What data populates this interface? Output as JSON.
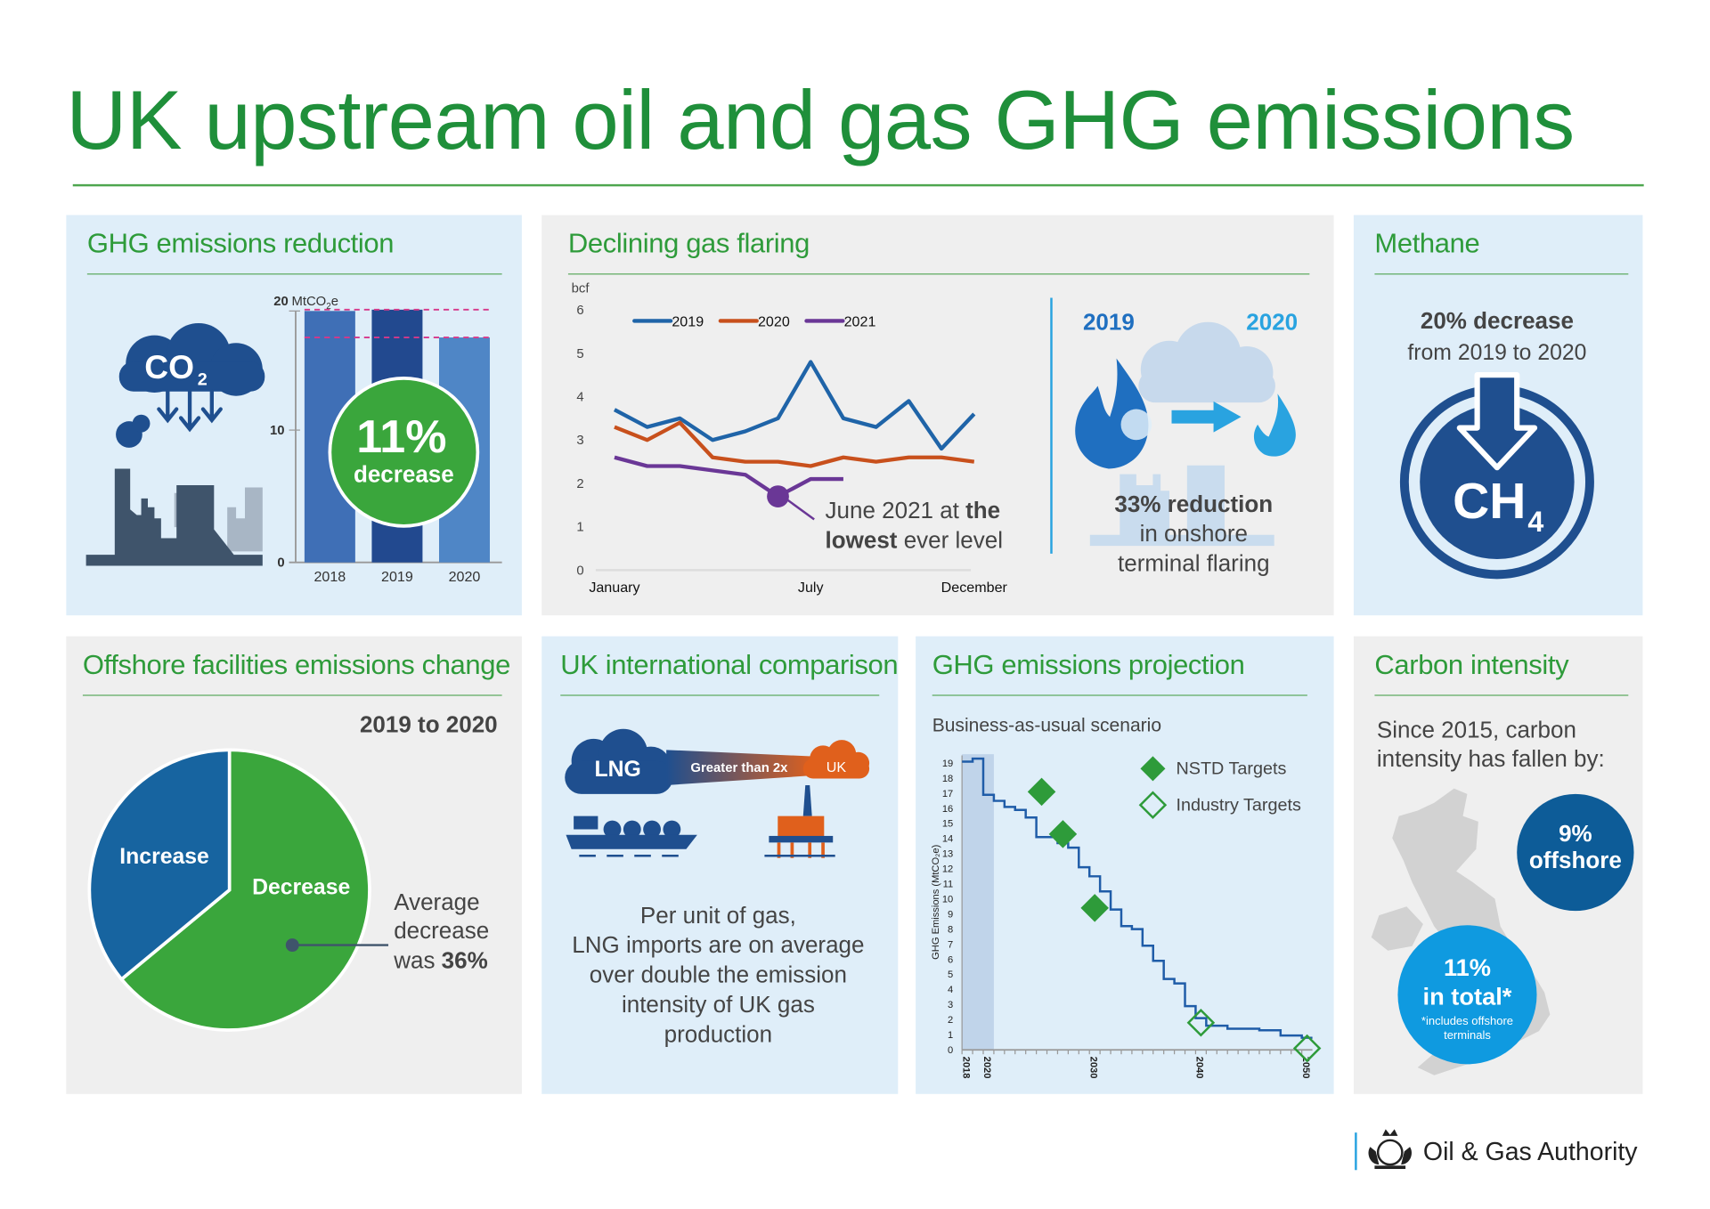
{
  "title": "UK upstream oil and gas GHG emissions",
  "colors": {
    "title_green": "#1f8f3a",
    "panel_blue": "#dfeef9",
    "panel_grey": "#efefef",
    "dark_blue": "#1f4f8f",
    "green": "#3aa63c",
    "light_blue": "#0f9ae0",
    "orange": "#e0601c"
  },
  "ghg_reduction": {
    "heading": "GHG emissions reduction",
    "cloud_label": "CO",
    "cloud_sub": "2",
    "badge_value": "11%",
    "badge_label": "decrease"
  },
  "flaring": {
    "heading": "Declining gas flaring",
    "annotation_1": "June 2021 at ",
    "annotation_bold_1": "the",
    "annotation_bold_2": "lowest",
    "annotation_2": " ever level",
    "year_left": "2019",
    "year_right": "2020",
    "reduction_bold": "33% reduction",
    "reduction_line2": "in onshore",
    "reduction_line3": "terminal flaring"
  },
  "methane": {
    "heading": "Methane",
    "stat_bold": "20% decrease",
    "stat_sub": "from 2019 to 2020",
    "icon_label": "CH",
    "icon_sub": "4"
  },
  "offshore": {
    "heading": "Offshore facilities emissions change",
    "period": "2019 to 2020",
    "note_1": "Average",
    "note_2": "decrease",
    "note_3": "was ",
    "note_bold": "36%"
  },
  "international": {
    "heading": "UK international comparison",
    "lng_label": "LNG",
    "arrow_label": "Greater than 2x",
    "uk_label": "UK",
    "lines": [
      "Per unit of gas,",
      "LNG imports are on average",
      "over double the emission",
      "intensity of UK gas",
      "production"
    ]
  },
  "projection": {
    "heading": "GHG emissions projection",
    "scenario": "Business-as-usual scenario"
  },
  "carbon_intensity": {
    "heading": "Carbon intensity",
    "intro_1": "Since 2015, carbon",
    "intro_2": "intensity has fallen by:",
    "offshore_value": "9%",
    "offshore_label": "offshore",
    "total_value": "11%",
    "total_label": "in total*",
    "footnote_1": "*includes offshore",
    "footnote_2": "terminals"
  },
  "footer": {
    "org_name": "Oil & Gas Authority"
  },
  "chart_data": [
    {
      "type": "bar",
      "categories": [
        "2018",
        "2019",
        "2020"
      ],
      "values": [
        19.0,
        19.1,
        17.0
      ],
      "ylabel_value": "20",
      "ylabel_unit": "MtCO",
      "ylabel_unit_sub": "2",
      "ylabel_unit_tail": "e",
      "yticks": [
        "0",
        "10"
      ],
      "ylim": [
        0,
        20
      ],
      "reference_lines": [
        19.1,
        17.0
      ]
    },
    {
      "type": "line",
      "ylabel": "bcf",
      "ylim": [
        0,
        6
      ],
      "yticks": [
        "0",
        "1",
        "2",
        "3",
        "4",
        "5",
        "6"
      ],
      "xtick_labels": [
        {
          "label": "January",
          "month": 1
        },
        {
          "label": "July",
          "month": 7
        },
        {
          "label": "December",
          "month": 12
        }
      ],
      "legend": "top",
      "series": [
        {
          "name": "2019",
          "color": "#1f64a8",
          "values": [
            3.7,
            3.3,
            3.5,
            3.0,
            3.2,
            3.5,
            4.8,
            3.5,
            3.3,
            3.9,
            2.8,
            3.6
          ]
        },
        {
          "name": "2020",
          "color": "#c8501c",
          "values": [
            3.3,
            3.0,
            3.4,
            2.6,
            2.5,
            2.5,
            2.4,
            2.6,
            2.5,
            2.6,
            2.6,
            2.5
          ]
        },
        {
          "name": "2021",
          "color": "#6a3796",
          "values": [
            2.6,
            2.4,
            2.4,
            2.3,
            2.2,
            1.7,
            2.1,
            2.1
          ]
        }
      ],
      "highlight": {
        "series": "2021",
        "month": 6,
        "value": 1.7
      }
    },
    {
      "type": "pie",
      "slices": [
        {
          "label": "Decrease",
          "value": 64,
          "color": "#3aa63c"
        },
        {
          "label": "Increase",
          "value": 36,
          "color": "#1764a0"
        }
      ]
    },
    {
      "type": "line",
      "ylabel": "GHG Emissions (MtCO₂e)",
      "ylim": [
        0,
        19
      ],
      "xlim": [
        2018,
        2051
      ],
      "xtick_labels": [
        "2018",
        "2020",
        "2030",
        "2040",
        "2050"
      ],
      "historical_shading": [
        2018,
        2021
      ],
      "series": [
        {
          "name": "Business-as-usual",
          "style": "step",
          "color": "#1f5ca8",
          "x": [
            2018,
            2019,
            2020,
            2021,
            2022,
            2023,
            2024,
            2025,
            2026,
            2027,
            2028,
            2029,
            2030,
            2031,
            2032,
            2033,
            2034,
            2035,
            2036,
            2037,
            2038,
            2039,
            2040,
            2041,
            2042,
            2043,
            2044,
            2045,
            2046,
            2047,
            2048,
            2049,
            2050
          ],
          "values": [
            19.1,
            19.3,
            16.9,
            16.5,
            16.1,
            15.9,
            15.4,
            14.1,
            14.1,
            13.7,
            13.4,
            12.1,
            11.5,
            10.5,
            9.3,
            8.2,
            8.0,
            6.9,
            5.9,
            4.7,
            4.4,
            2.9,
            2.1,
            1.6,
            1.6,
            1.4,
            1.4,
            1.4,
            1.3,
            1.3,
            0.95,
            0.95,
            0.8
          ]
        },
        {
          "name": "NSTD Targets",
          "style": "filled-diamond",
          "color": "#2e9b3a",
          "x": [
            2025.5,
            2027.5,
            2030.5
          ],
          "values": [
            17.1,
            14.3,
            9.4
          ]
        },
        {
          "name": "Industry Targets",
          "style": "open-diamond",
          "color": "#2e9b3a",
          "x": [
            2040.5,
            2050.5
          ],
          "values": [
            1.8,
            0.1
          ]
        }
      ],
      "legend": "top-right"
    }
  ]
}
